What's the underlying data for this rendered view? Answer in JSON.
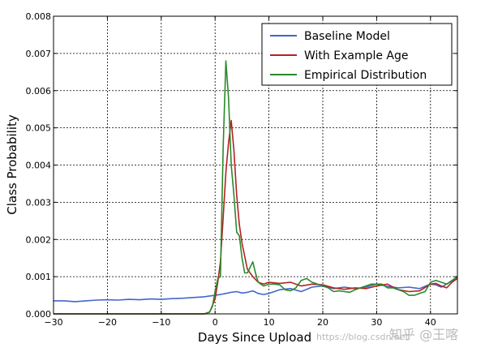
{
  "chart_data": {
    "type": "line",
    "title": "",
    "xlabel": "Days Since Upload",
    "ylabel": "Class Probability",
    "xlim": [
      -30,
      45
    ],
    "ylim": [
      0,
      0.008
    ],
    "x_ticks": [
      -30,
      -20,
      -10,
      0,
      10,
      20,
      30,
      40
    ],
    "x_tick_labels": [
      "−30",
      "−20",
      "−10",
      "0",
      "10",
      "20",
      "30",
      "40"
    ],
    "y_ticks": [
      0,
      0.001,
      0.002,
      0.003,
      0.004,
      0.005,
      0.006,
      0.007,
      0.008
    ],
    "y_tick_labels": [
      "0.000",
      "0.001",
      "0.002",
      "0.003",
      "0.004",
      "0.005",
      "0.006",
      "0.007",
      "0.008"
    ],
    "grid": true,
    "legend_position": "top-right",
    "series": [
      {
        "name": "Baseline Model",
        "color": "#4466cc",
        "x": [
          -30,
          -28,
          -26,
          -24,
          -22,
          -20,
          -18,
          -16,
          -14,
          -12,
          -10,
          -8,
          -6,
          -4,
          -2,
          0,
          1,
          2,
          3,
          4,
          5,
          6,
          7,
          8,
          9,
          10,
          12,
          14,
          16,
          18,
          20,
          22,
          24,
          26,
          28,
          30,
          32,
          34,
          36,
          38,
          40,
          41,
          42,
          43,
          44,
          45
        ],
        "y": [
          0.00035,
          0.00035,
          0.00033,
          0.00035,
          0.00037,
          0.00038,
          0.00037,
          0.00039,
          0.00038,
          0.0004,
          0.00039,
          0.00041,
          0.00042,
          0.00044,
          0.00046,
          0.0005,
          0.00052,
          0.00055,
          0.00058,
          0.0006,
          0.00056,
          0.00058,
          0.00062,
          0.00055,
          0.00052,
          0.00055,
          0.00065,
          0.00068,
          0.0006,
          0.00072,
          0.00075,
          0.00068,
          0.00072,
          0.00068,
          0.00072,
          0.0008,
          0.00074,
          0.0007,
          0.00072,
          0.00068,
          0.0008,
          0.00078,
          0.00072,
          0.0008,
          0.00088,
          0.00095
        ]
      },
      {
        "name": "With Example Age",
        "color": "#b22222",
        "x": [
          -30,
          -10,
          -2,
          -1,
          0,
          0.5,
          1,
          1.5,
          2,
          2.5,
          3,
          3.5,
          4,
          4.5,
          5,
          6,
          7,
          8,
          9,
          10,
          12,
          14,
          16,
          18,
          20,
          22,
          24,
          26,
          28,
          30,
          32,
          34,
          36,
          38,
          40,
          41,
          42,
          43,
          44,
          45
        ],
        "y": [
          0,
          0,
          0,
          5e-05,
          0.0004,
          0.00085,
          0.0014,
          0.0026,
          0.0038,
          0.0046,
          0.0052,
          0.0044,
          0.0032,
          0.0024,
          0.0019,
          0.0012,
          0.001,
          0.00085,
          0.0008,
          0.00085,
          0.00082,
          0.00085,
          0.00075,
          0.0008,
          0.00078,
          0.0007,
          0.00066,
          0.0007,
          0.00068,
          0.00075,
          0.0008,
          0.00065,
          0.0006,
          0.00062,
          0.0008,
          0.00082,
          0.00075,
          0.0007,
          0.00085,
          0.00095
        ]
      },
      {
        "name": "Empirical Distribution",
        "color": "#2a8a2a",
        "x": [
          -30,
          -10,
          -2,
          -1,
          -0.5,
          0,
          0.5,
          1,
          1.5,
          2,
          2.5,
          3,
          3.5,
          4,
          4.5,
          5,
          5.5,
          6,
          7,
          7.5,
          8,
          9,
          10,
          11,
          12,
          13,
          14,
          15,
          16,
          17,
          18,
          19,
          20,
          21,
          22,
          23,
          24,
          25,
          26,
          27,
          28,
          29,
          30,
          31,
          32,
          33,
          34,
          35,
          36,
          37,
          38,
          39,
          40,
          41,
          42,
          43,
          44,
          45
        ],
        "y": [
          0,
          0,
          0,
          5e-05,
          0.0002,
          0.0006,
          0.00095,
          0.001,
          0.0045,
          0.0068,
          0.0058,
          0.004,
          0.0032,
          0.0022,
          0.0021,
          0.0015,
          0.0011,
          0.0011,
          0.0014,
          0.0011,
          0.00085,
          0.00075,
          0.0008,
          0.0008,
          0.00078,
          0.00065,
          0.00062,
          0.0007,
          0.0009,
          0.00095,
          0.00085,
          0.0008,
          0.00075,
          0.0007,
          0.0006,
          0.00062,
          0.0006,
          0.00058,
          0.00065,
          0.0007,
          0.00075,
          0.0008,
          0.0008,
          0.0008,
          0.0007,
          0.0007,
          0.00065,
          0.0006,
          0.0005,
          0.0005,
          0.00055,
          0.0006,
          0.00085,
          0.0009,
          0.00085,
          0.0008,
          0.0009,
          0.001
        ]
      }
    ]
  },
  "watermark": {
    "text": "https://blog.csdn.net",
    "brand": "知乎 @王喀"
  }
}
